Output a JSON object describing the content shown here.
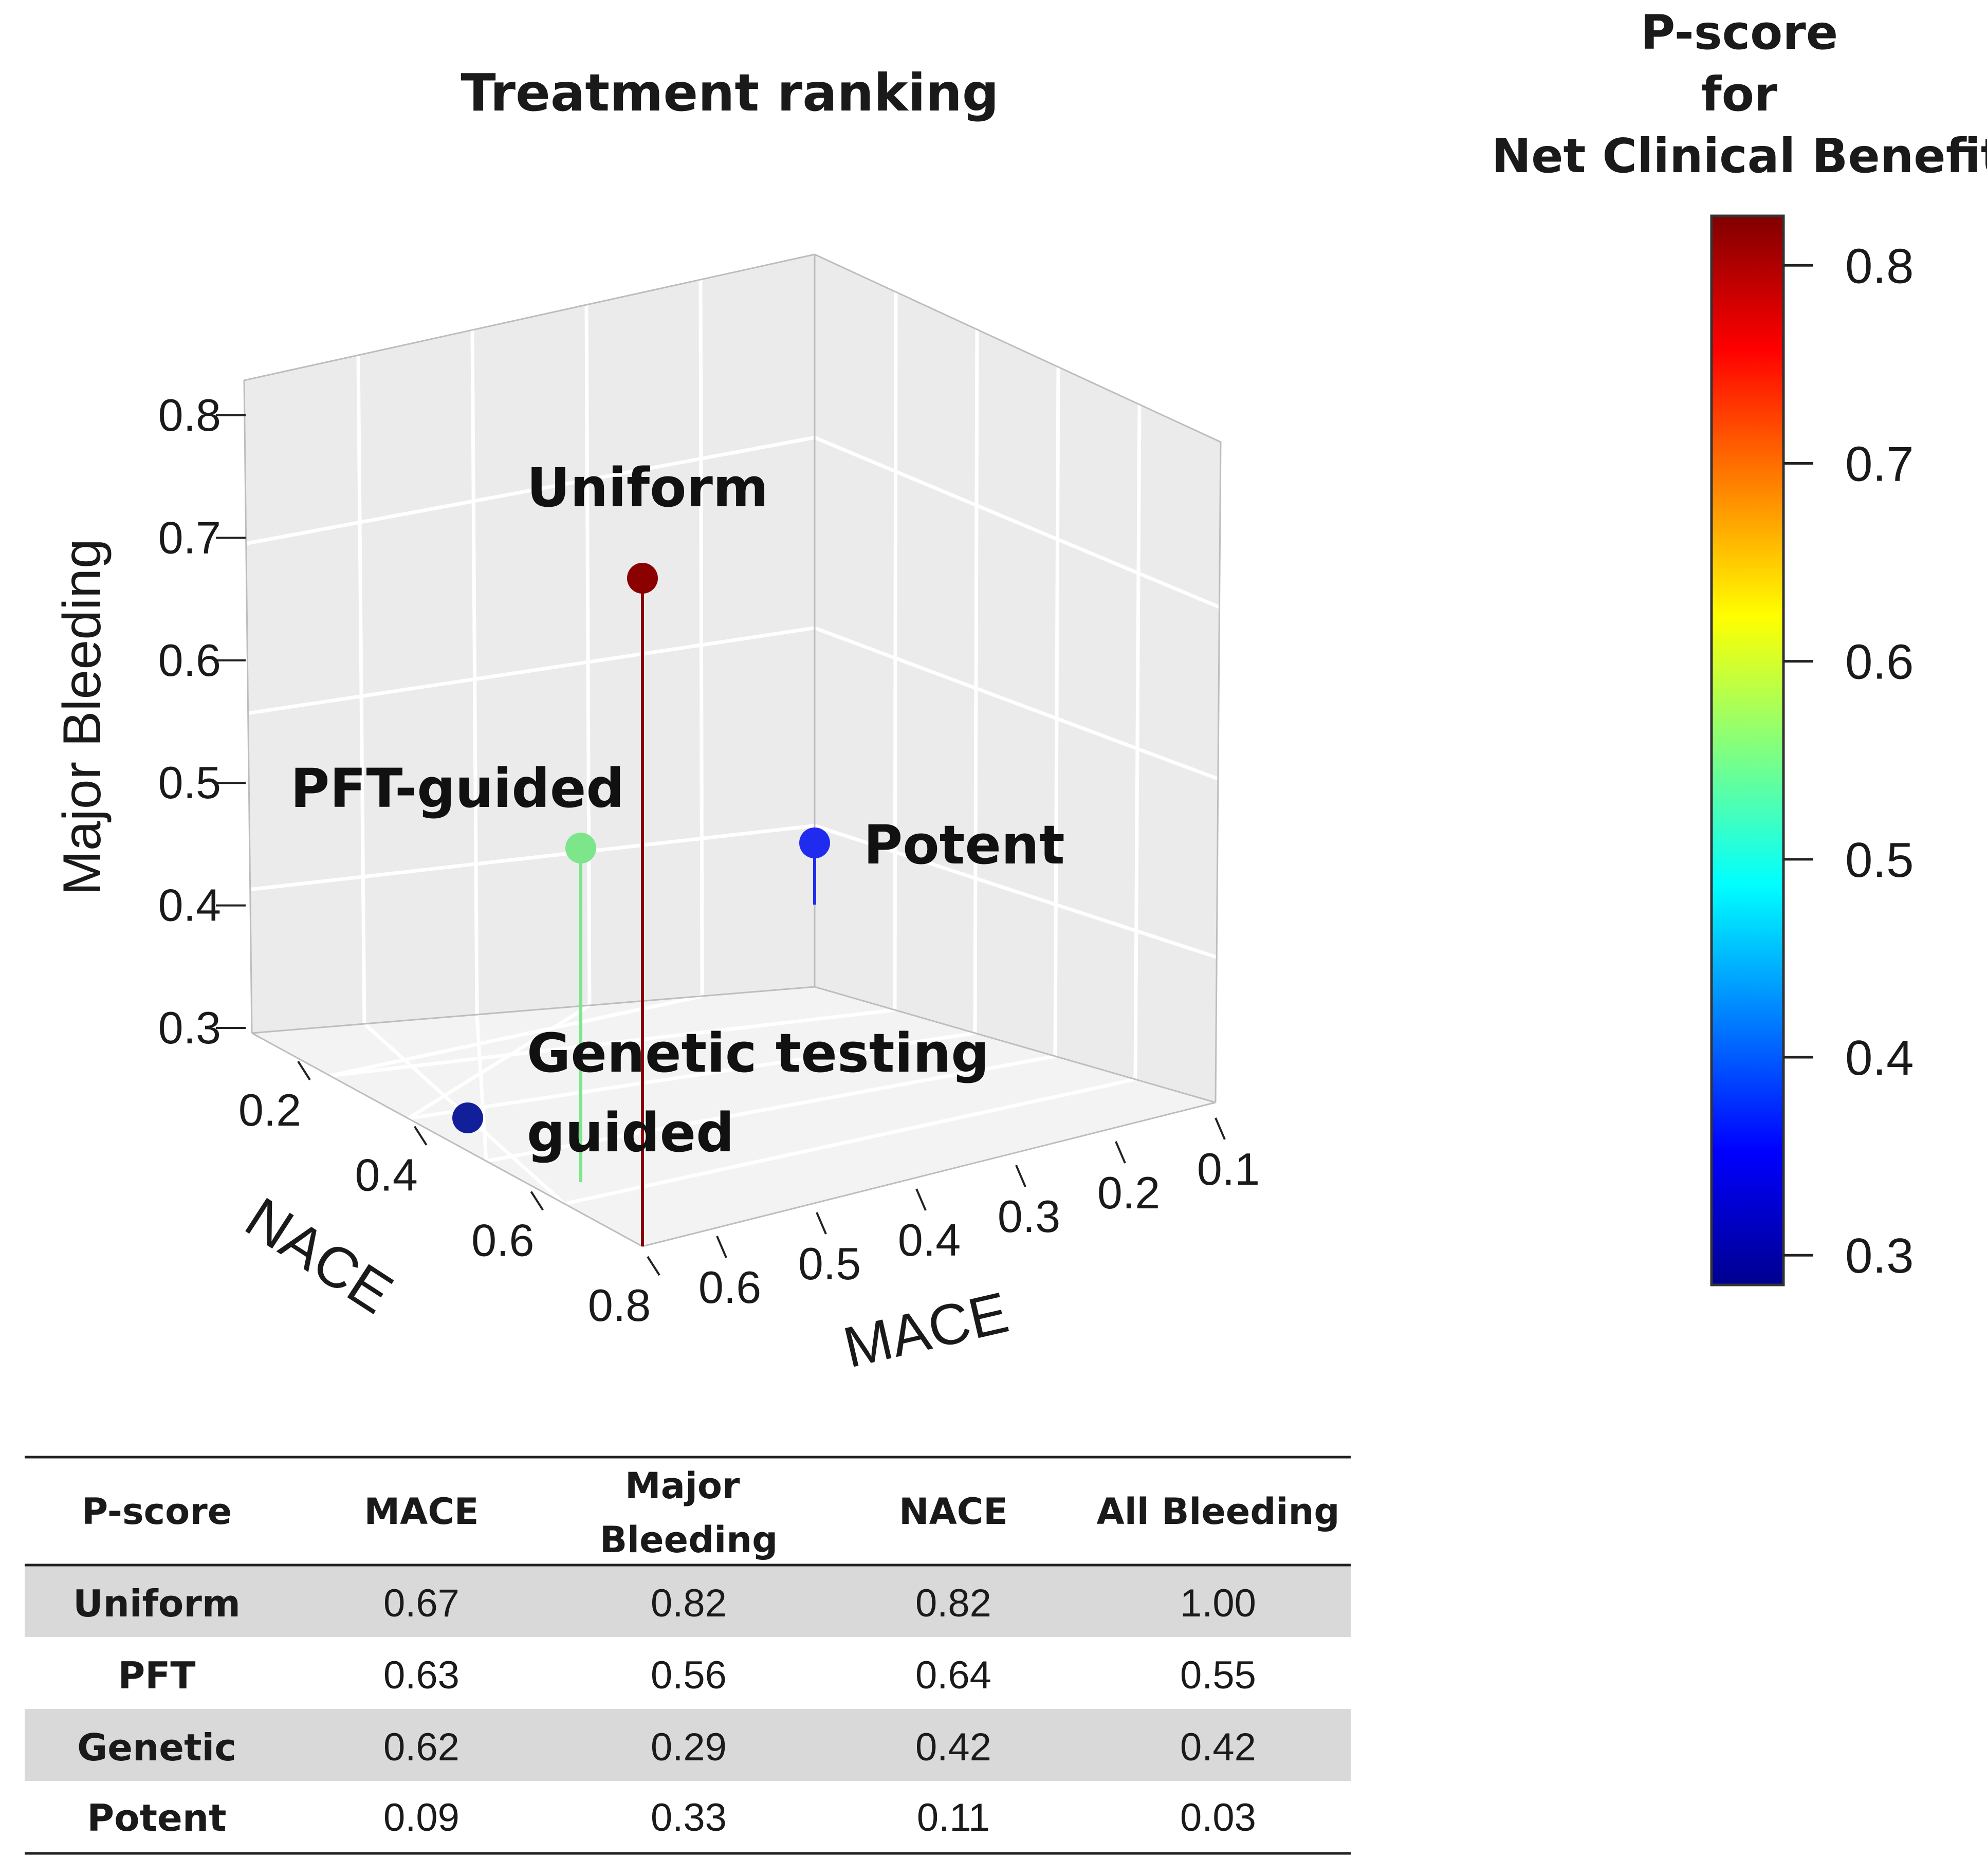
{
  "chart_data": {
    "type": "scatter",
    "title": "Treatment ranking",
    "axes": {
      "x": {
        "label": "MACE",
        "range": [
          0.1,
          0.7
        ],
        "ticks": [
          "0.1",
          "0.2",
          "0.3",
          "0.4",
          "0.5",
          "0.6"
        ]
      },
      "y": {
        "label": "NACE",
        "range": [
          0.1,
          0.8
        ],
        "ticks": [
          "0.2",
          "0.4",
          "0.6",
          "0.8"
        ]
      },
      "z": {
        "label": "Major Bleeding",
        "range": [
          0.3,
          0.8
        ],
        "ticks": [
          "0.3",
          "0.4",
          "0.5",
          "0.6",
          "0.7",
          "0.8"
        ]
      }
    },
    "points": [
      {
        "name": "Uniform",
        "mace": 0.67,
        "nace": 0.82,
        "major_bleeding": 0.82,
        "net_clinical_benefit": 0.82,
        "color": "#8b0000"
      },
      {
        "name": "PFT-guided",
        "mace": 0.63,
        "nace": 0.64,
        "major_bleeding": 0.56,
        "net_clinical_benefit": 0.56,
        "color": "#7de58a"
      },
      {
        "name": "Genetic testing guided",
        "mace": 0.62,
        "nace": 0.42,
        "major_bleeding": 0.29,
        "net_clinical_benefit": 0.29,
        "color": "#121f9a"
      },
      {
        "name": "Potent",
        "mace": 0.09,
        "nace": 0.11,
        "major_bleeding": 0.33,
        "net_clinical_benefit": 0.33,
        "color": "#1f2cf0"
      }
    ],
    "colorbar": {
      "title": [
        "P-score",
        "for",
        "Net Clinical Benefit"
      ],
      "range": [
        0.285,
        0.825
      ],
      "ticks": [
        "0.3",
        "0.4",
        "0.5",
        "0.6",
        "0.7",
        "0.8"
      ],
      "colormap": [
        "#00008f",
        "#0000ff",
        "#0080ff",
        "#00ffff",
        "#80ff80",
        "#ffff00",
        "#ff8000",
        "#ff0000",
        "#800000"
      ]
    }
  },
  "table": {
    "headers": [
      "P-score",
      "MACE",
      "Major Bleeding",
      "NACE",
      "All Bleeding"
    ],
    "rows": [
      [
        "Uniform",
        "0.67",
        "0.82",
        "0.82",
        "1.00"
      ],
      [
        "PFT",
        "0.63",
        "0.56",
        "0.64",
        "0.55"
      ],
      [
        "Genetic",
        "0.62",
        "0.29",
        "0.42",
        "0.42"
      ],
      [
        "Potent",
        "0.09",
        "0.33",
        "0.11",
        "0.03"
      ]
    ],
    "shade_color": "#d9d9d9"
  }
}
